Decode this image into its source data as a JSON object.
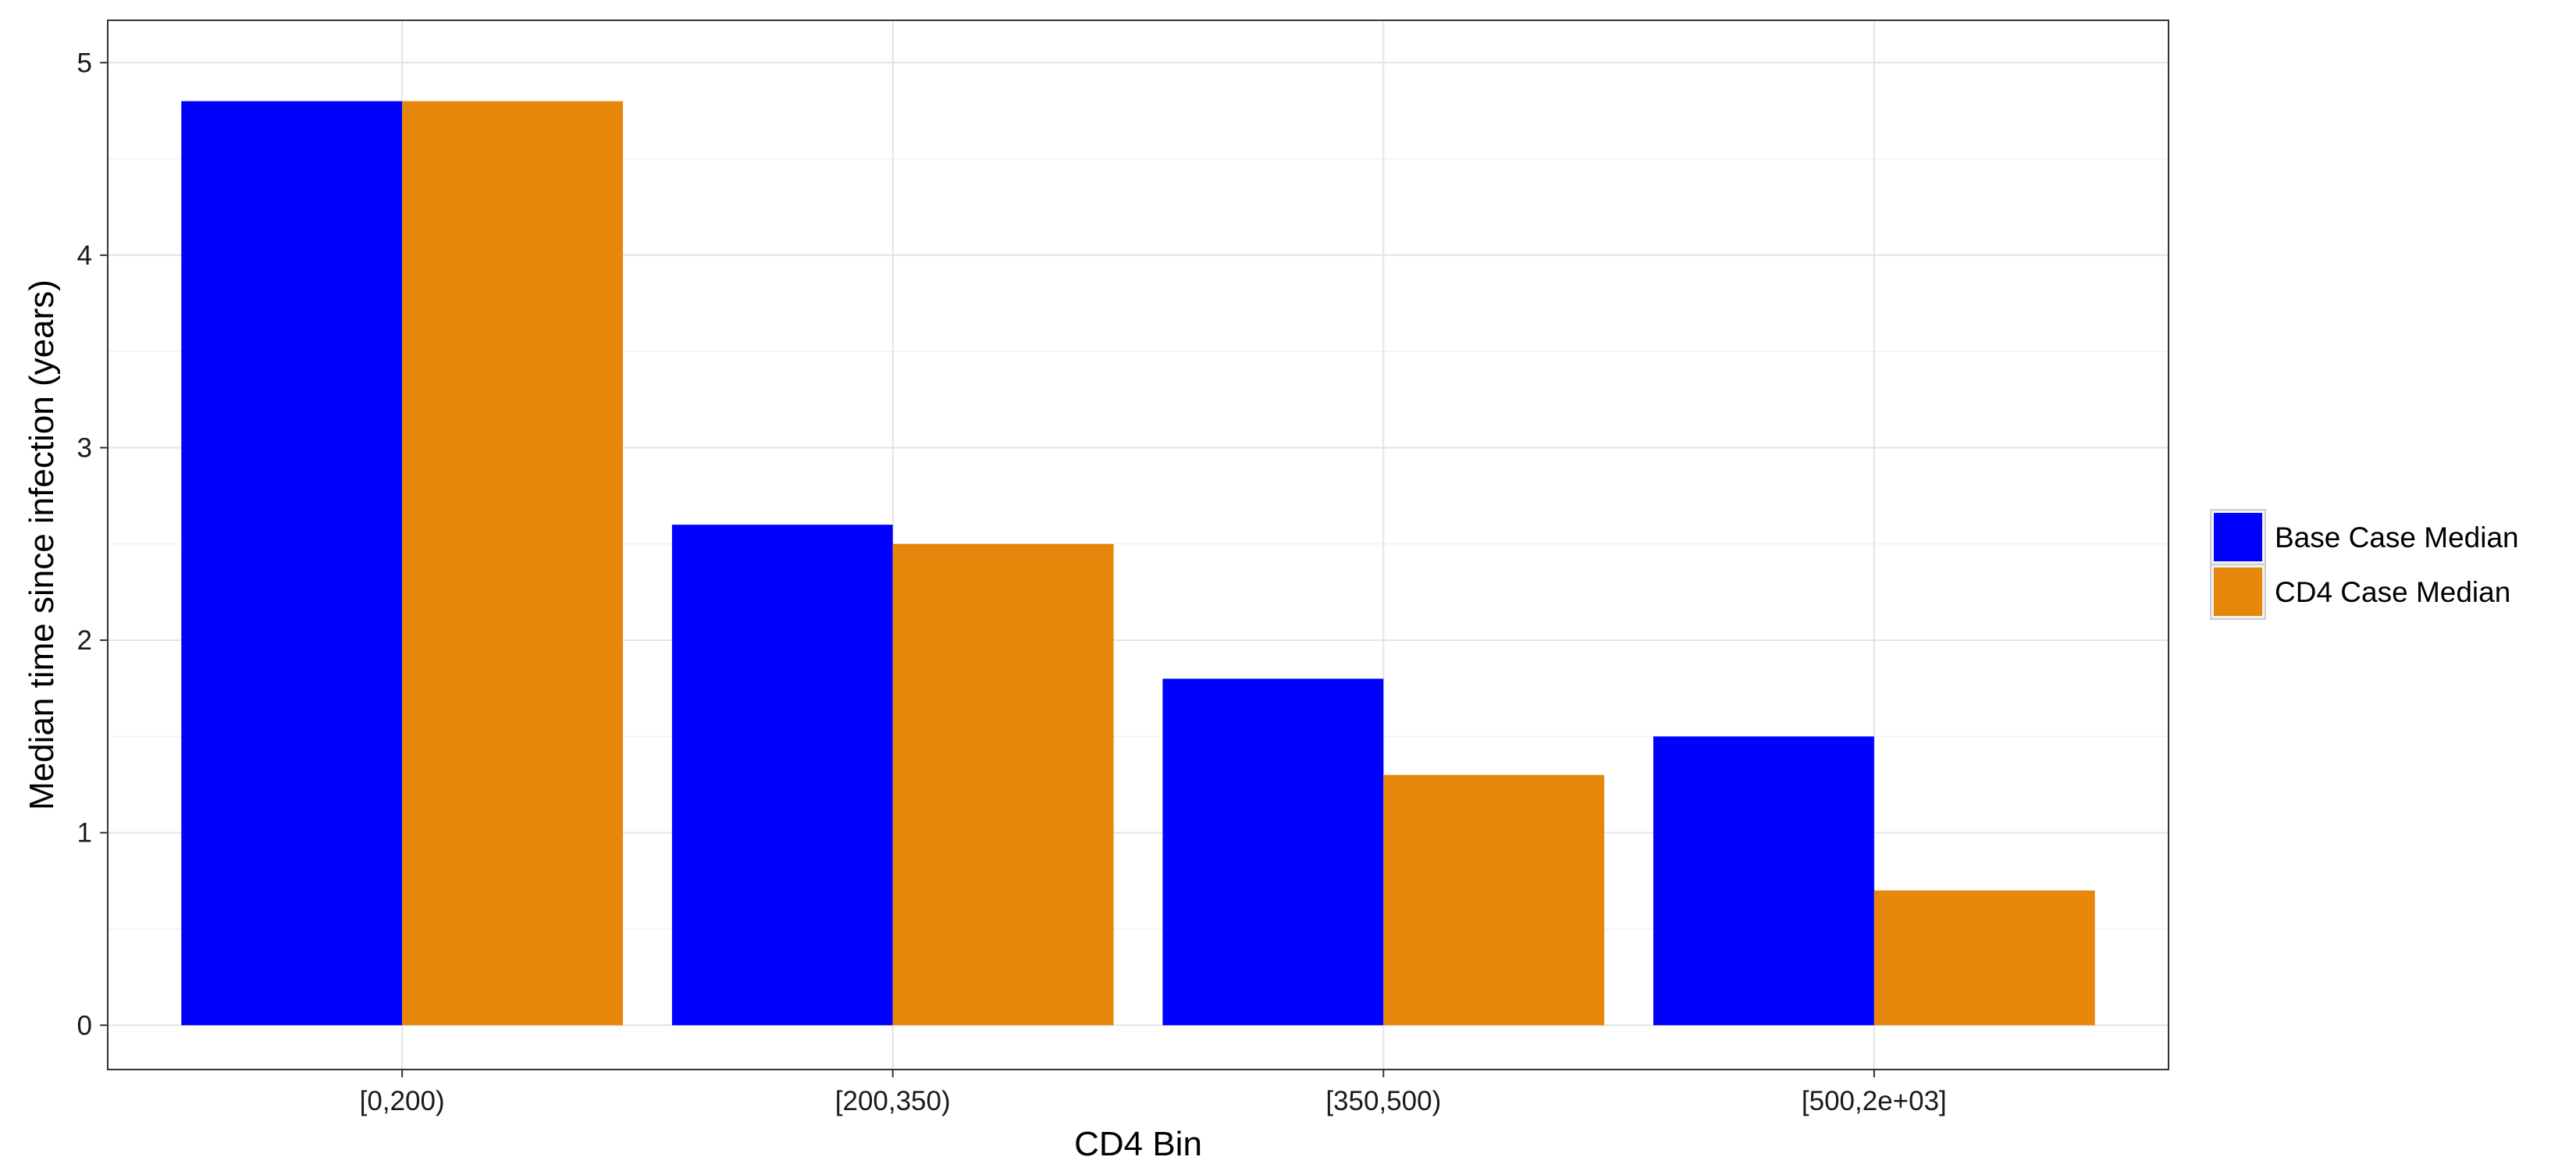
{
  "chart_data": {
    "type": "bar",
    "title": "",
    "xlabel": "CD4 Bin",
    "ylabel": "Median time since infection (years)",
    "categories": [
      "[0,200)",
      "[200,350)",
      "[350,500)",
      "[500,2e+03]"
    ],
    "series": [
      {
        "name": "Base Case Median",
        "color": "#0000FF",
        "values": [
          4.8,
          2.6,
          1.8,
          1.5
        ]
      },
      {
        "name": "CD4 Case Median",
        "color": "#E6860A",
        "values": [
          4.8,
          2.5,
          1.3,
          0.7
        ]
      }
    ],
    "ylim": [
      0,
      5
    ],
    "yticks": [
      0,
      1,
      2,
      3,
      4,
      5
    ],
    "grid": true,
    "legend_position": "right"
  }
}
